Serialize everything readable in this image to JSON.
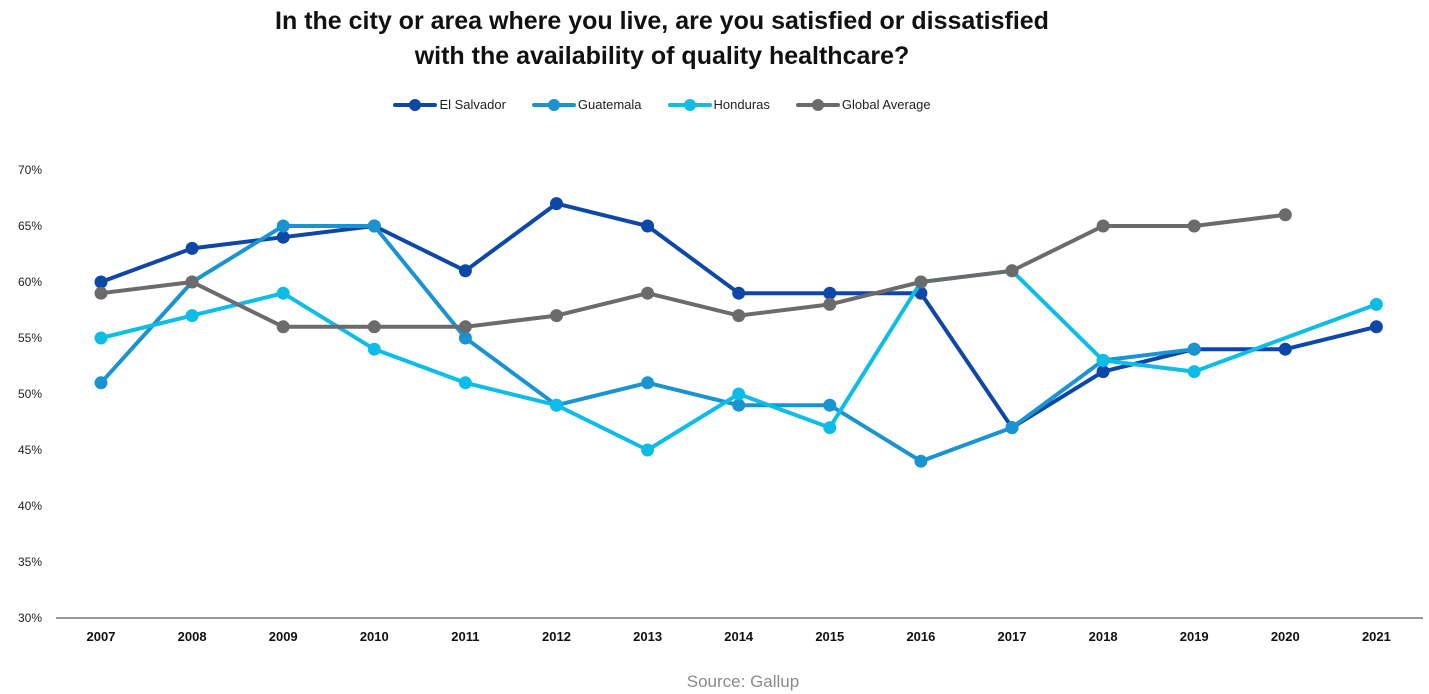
{
  "chart_data": {
    "type": "line",
    "title_line1": "In the city or area where you live, are you satisfied or dissatisfied",
    "title_line2": "with the availability of quality healthcare?",
    "x": [
      "2007",
      "2008",
      "2009",
      "2010",
      "2011",
      "2012",
      "2013",
      "2014",
      "2015",
      "2016",
      "2017",
      "2018",
      "2019",
      "2020",
      "2021"
    ],
    "ylim": [
      30,
      70
    ],
    "yticks": [
      "70%",
      "65%",
      "60%",
      "55%",
      "50%",
      "45%",
      "40%",
      "35%",
      "30%"
    ],
    "legend_position": "top-center",
    "grid": false,
    "series": [
      {
        "name": "El Salvador",
        "color": "#0d47a8",
        "values": [
          60,
          63,
          64,
          65,
          61,
          67,
          65,
          59,
          59,
          59,
          47,
          52,
          54,
          54,
          56
        ]
      },
      {
        "name": "Guatemala",
        "color": "#1a94d0",
        "values": [
          51,
          60,
          65,
          65,
          55,
          49,
          51,
          49,
          49,
          44,
          47,
          53,
          54,
          null,
          null
        ]
      },
      {
        "name": "Honduras",
        "color": "#0dbde8",
        "values": [
          55,
          57,
          59,
          54,
          51,
          49,
          45,
          50,
          47,
          60,
          61,
          53,
          52,
          null,
          58
        ]
      },
      {
        "name": "Global Average",
        "color": "#6b6b6b",
        "values": [
          59,
          60,
          56,
          56,
          56,
          57,
          59,
          57,
          58,
          60,
          61,
          65,
          65,
          66,
          null
        ]
      }
    ],
    "source": "Source: Gallup"
  }
}
